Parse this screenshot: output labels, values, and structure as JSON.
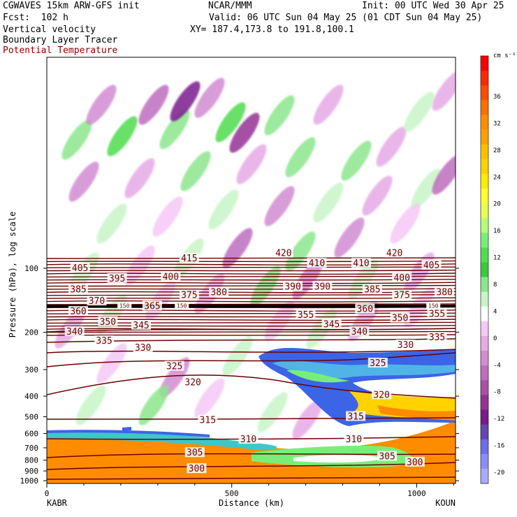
{
  "header": {
    "line1_left": "CGWAVES 15km ARW-GFS init",
    "line1_center": "NCAR/MMM",
    "line1_right": "Init: 00 UTC Wed 30 Apr 25",
    "line2_left": "Fcst:  102 h",
    "line2_right": "Valid: 06 UTC Sun 04 May 25 (01 CDT Sun 04 May 25)",
    "line3_left": "Vertical velocity",
    "line3_right": "XY= 187.4,173.8 to 191.8,100.1",
    "line4_left": "Boundary Layer Tracer",
    "line5_left": "Potential Temperature"
  },
  "chart_data": {
    "type": "heatmap",
    "title": "Vertical velocity / Boundary Layer Tracer / Potential Temperature cross-section",
    "xlabel": "Distance (km)",
    "ylabel": "Pressure (hPa), log scale",
    "x_ticks": [
      "0",
      "500",
      "1000"
    ],
    "x_tick_values": [
      0,
      500,
      1000
    ],
    "xlim": [
      0,
      1105
    ],
    "x_end_labels": {
      "left": "KABR",
      "right": "KOUN"
    },
    "y_scale": "log",
    "y_ticks": [
      "100",
      "200",
      "300",
      "400",
      "500",
      "600",
      "700",
      "800",
      "900",
      "1000"
    ],
    "y_tick_values": [
      100,
      200,
      300,
      400,
      500,
      600,
      700,
      800,
      900,
      1000
    ],
    "colorbar": {
      "unit": "cm s⁻¹",
      "labels": [
        "36",
        "32",
        "28",
        "24",
        "20",
        "16",
        "12",
        "8",
        "4",
        "0",
        "-4",
        "-8",
        "-12",
        "-16",
        "-20"
      ],
      "label_values": [
        36,
        32,
        28,
        24,
        20,
        16,
        12,
        8,
        4,
        0,
        -4,
        -8,
        -12,
        -16,
        -20
      ],
      "colors": [
        "#ff0000",
        "#ff2800",
        "#ff4b00",
        "#ff6e00",
        "#ff8c00",
        "#ffa000",
        "#ffbe00",
        "#ffd200",
        "#ffeb00",
        "#ffff32",
        "#e6ff50",
        "#b4ff78",
        "#78ee78",
        "#50dc50",
        "#3cc83c",
        "#8ce68c",
        "#c8f5c8",
        "#ffffff",
        "#f5c8f5",
        "#e6aae6",
        "#d28cd2",
        "#be6ebe",
        "#aa50aa",
        "#963296",
        "#7a1a8c",
        "#6446b4",
        "#6e6ee6",
        "#8c8cf5",
        "#aaaaff"
      ]
    },
    "theta_contours": {
      "units": "K",
      "labels": [
        {
          "value": 415,
          "x_km": 385,
          "p_hPa": 90
        },
        {
          "value": 420,
          "x_km": 640,
          "p_hPa": 85
        },
        {
          "value": 420,
          "x_km": 940,
          "p_hPa": 85
        },
        {
          "value": 405,
          "x_km": 90,
          "p_hPa": 100
        },
        {
          "value": 410,
          "x_km": 730,
          "p_hPa": 95
        },
        {
          "value": 410,
          "x_km": 850,
          "p_hPa": 95
        },
        {
          "value": 405,
          "x_km": 1040,
          "p_hPa": 97
        },
        {
          "value": 395,
          "x_km": 190,
          "p_hPa": 112
        },
        {
          "value": 400,
          "x_km": 335,
          "p_hPa": 110
        },
        {
          "value": 400,
          "x_km": 960,
          "p_hPa": 111
        },
        {
          "value": 385,
          "x_km": 85,
          "p_hPa": 126
        },
        {
          "value": 380,
          "x_km": 465,
          "p_hPa": 130
        },
        {
          "value": 390,
          "x_km": 665,
          "p_hPa": 122
        },
        {
          "value": 390,
          "x_km": 745,
          "p_hPa": 122
        },
        {
          "value": 385,
          "x_km": 880,
          "p_hPa": 126
        },
        {
          "value": 380,
          "x_km": 1075,
          "p_hPa": 130
        },
        {
          "value": 375,
          "x_km": 385,
          "p_hPa": 134
        },
        {
          "value": 375,
          "x_km": 960,
          "p_hPa": 134
        },
        {
          "value": 370,
          "x_km": 135,
          "p_hPa": 143
        },
        {
          "value": 365,
          "x_km": 285,
          "p_hPa": 151
        },
        {
          "value": 360,
          "x_km": 85,
          "p_hPa": 160
        },
        {
          "value": 360,
          "x_km": 860,
          "p_hPa": 156
        },
        {
          "value": 355,
          "x_km": 700,
          "p_hPa": 166
        },
        {
          "value": 355,
          "x_km": 1055,
          "p_hPa": 164
        },
        {
          "value": 350,
          "x_km": 165,
          "p_hPa": 179
        },
        {
          "value": 350,
          "x_km": 955,
          "p_hPa": 172
        },
        {
          "value": 345,
          "x_km": 255,
          "p_hPa": 186
        },
        {
          "value": 345,
          "x_km": 770,
          "p_hPa": 184
        },
        {
          "value": 340,
          "x_km": 75,
          "p_hPa": 199
        },
        {
          "value": 340,
          "x_km": 845,
          "p_hPa": 199
        },
        {
          "value": 335,
          "x_km": 155,
          "p_hPa": 220
        },
        {
          "value": 335,
          "x_km": 1055,
          "p_hPa": 212
        },
        {
          "value": 330,
          "x_km": 260,
          "p_hPa": 237
        },
        {
          "value": 330,
          "x_km": 970,
          "p_hPa": 230
        },
        {
          "value": 325,
          "x_km": 345,
          "p_hPa": 290
        },
        {
          "value": 325,
          "x_km": 895,
          "p_hPa": 280
        },
        {
          "value": 320,
          "x_km": 395,
          "p_hPa": 345
        },
        {
          "value": 320,
          "x_km": 905,
          "p_hPa": 395
        },
        {
          "value": 315,
          "x_km": 435,
          "p_hPa": 520
        },
        {
          "value": 315,
          "x_km": 835,
          "p_hPa": 500
        },
        {
          "value": 310,
          "x_km": 545,
          "p_hPa": 640
        },
        {
          "value": 310,
          "x_km": 830,
          "p_hPa": 640
        },
        {
          "value": 305,
          "x_km": 400,
          "p_hPa": 740
        },
        {
          "value": 305,
          "x_km": 920,
          "p_hPa": 770
        },
        {
          "value": 300,
          "x_km": 405,
          "p_hPa": 880
        },
        {
          "value": 300,
          "x_km": 995,
          "p_hPa": 820
        }
      ],
      "small_labels": [
        {
          "value": 150,
          "x_km": 210,
          "p_hPa": 150
        },
        {
          "value": 150,
          "x_km": 365,
          "p_hPa": 150
        },
        {
          "value": 150,
          "x_km": 1045,
          "p_hPa": 150
        }
      ]
    }
  },
  "style": {
    "contour_color": "#6b0000",
    "frame_color": "#000000",
    "header_subtitle_color": "#8b0000"
  }
}
